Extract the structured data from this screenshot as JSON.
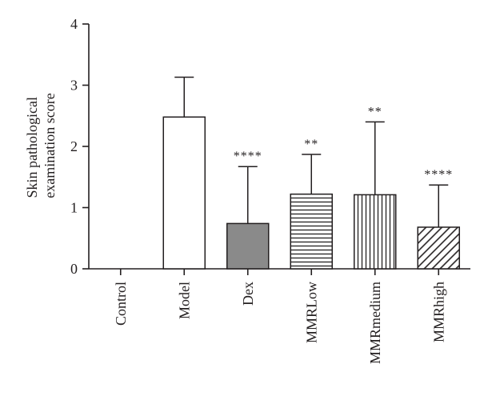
{
  "chart_data": {
    "type": "bar",
    "ylabel_lines": [
      "Skin pathological",
      "examination score"
    ],
    "ylim": [
      0,
      4
    ],
    "yticks": [
      "0",
      "1",
      "2",
      "3",
      "4"
    ],
    "categories": [
      "Control",
      "Model",
      "Dex",
      "MMRLow",
      "MMRmedium",
      "MMRhigh"
    ],
    "values": [
      0,
      2.48,
      0.74,
      1.22,
      1.21,
      0.68
    ],
    "error_upper": [
      0,
      3.13,
      1.67,
      1.87,
      2.4,
      1.37
    ],
    "significance": [
      "",
      "",
      "****",
      "**",
      "**",
      "****"
    ],
    "fills": [
      "none",
      "white",
      "#8a8a8a",
      "hlines",
      "vlines",
      "diag"
    ],
    "grid": false
  }
}
